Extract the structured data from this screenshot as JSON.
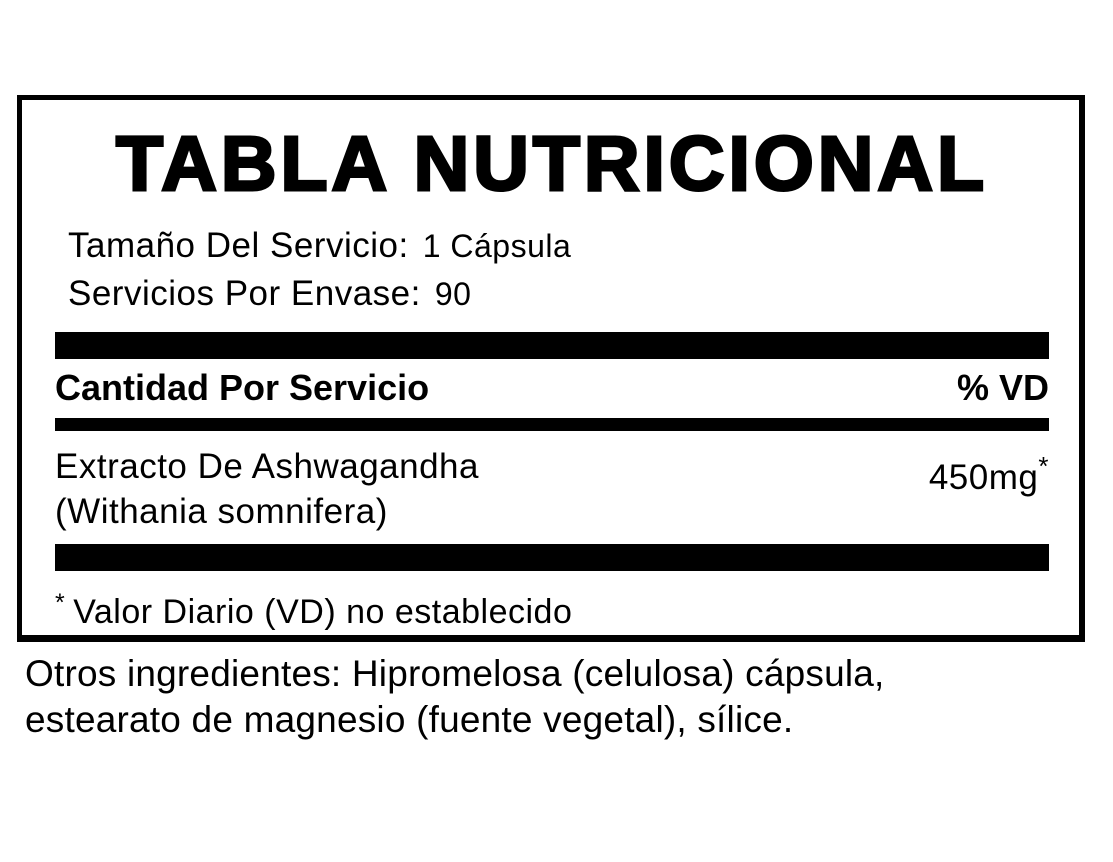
{
  "panel": {
    "title": "TABLA NUTRICIONAL",
    "serving_info": [
      {
        "label": "Tamaño Del Servicio:",
        "value": "1 Cápsula"
      },
      {
        "label": "Servicios Por Envase:",
        "value": "90"
      }
    ],
    "header": {
      "amount_label": "Cantidad Por Servicio",
      "daily_value_label": "% VD"
    },
    "rows": [
      {
        "name_line1": "Extracto De Ashwagandha",
        "name_line2": "(Withania somnifera)",
        "amount": "450mg",
        "footnote_mark": "*"
      }
    ],
    "footnote": {
      "mark": "*",
      "text": "Valor Diario (VD) no establecido"
    }
  },
  "other_ingredients": {
    "line1": "Otros ingredientes: Hipromelosa (celulosa) cápsula,",
    "line2": "estearato de magnesio (fuente vegetal), sílice."
  },
  "colors": {
    "text": "#000000",
    "background": "#ffffff",
    "divider": "#000000"
  }
}
